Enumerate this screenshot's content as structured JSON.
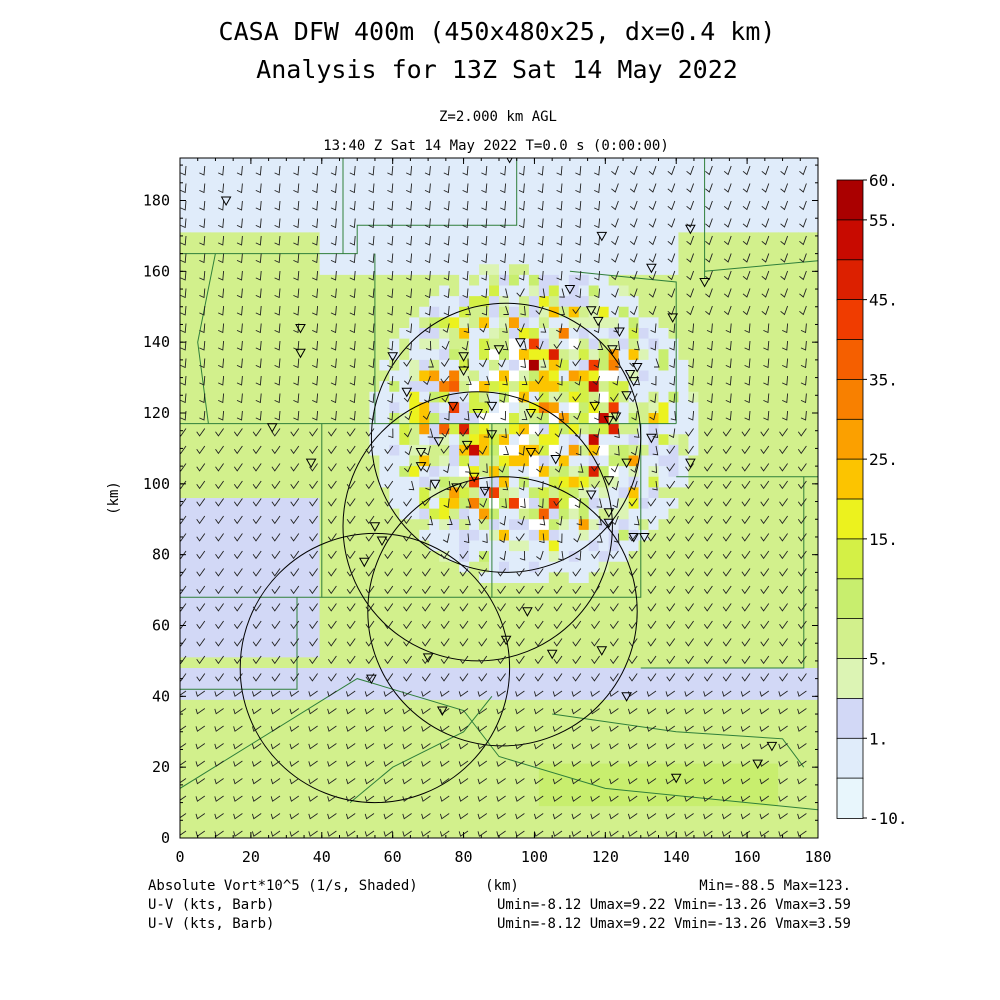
{
  "header": {
    "title_line1": "CASA DFW 400m (450x480x25, dx=0.4 km)",
    "title_line2": "Analysis for 13Z Sat 14 May 2022",
    "level": "Z=2.000 km AGL",
    "valid_time": "13:40 Z Sat 14 May 2022    T=0.0 s (0:00:00)"
  },
  "footer": {
    "field_label": "Absolute Vort*10^5 (1/s, Shaded)",
    "xlabel": "(km)",
    "minmax": "Min=-88.5 Max=123.",
    "wind1_label": "U-V (kts, Barb)",
    "wind1_stats": "Umin=-8.12 Umax=9.22 Vmin=-13.26 Vmax=3.59",
    "wind2_label": "U-V (kts, Barb)",
    "wind2_stats": "Umin=-8.12 Umax=9.22 Vmin=-13.26 Vmax=3.59"
  },
  "chart_data": {
    "type": "heatmap",
    "xlabel": "(km)",
    "ylabel": "(km)",
    "xlim": [
      0,
      180
    ],
    "ylim": [
      0,
      192
    ],
    "xticks": [
      0,
      20,
      40,
      60,
      80,
      100,
      120,
      140,
      160,
      180
    ],
    "yticks": [
      0,
      20,
      40,
      60,
      80,
      100,
      120,
      140,
      160,
      180
    ],
    "colorbar": {
      "labels": [
        "60.",
        "55.",
        "45.",
        "35.",
        "25.",
        "15.",
        "5.",
        "1.",
        "-10."
      ],
      "label_levels": [
        60,
        55,
        45,
        35,
        25,
        15,
        5,
        1,
        -10
      ],
      "bins": [
        {
          "lo": 55,
          "hi": 60,
          "color": "#aa0000"
        },
        {
          "lo": 50,
          "hi": 55,
          "color": "#c80a00"
        },
        {
          "lo": 45,
          "hi": 50,
          "color": "#dc2000"
        },
        {
          "lo": 40,
          "hi": 45,
          "color": "#f03c00"
        },
        {
          "lo": 35,
          "hi": 40,
          "color": "#f55f00"
        },
        {
          "lo": 30,
          "hi": 35,
          "color": "#f88000"
        },
        {
          "lo": 25,
          "hi": 30,
          "color": "#fba000"
        },
        {
          "lo": 20,
          "hi": 25,
          "color": "#fcc400"
        },
        {
          "lo": 15,
          "hi": 20,
          "color": "#ecf21e"
        },
        {
          "lo": 12,
          "hi": 15,
          "color": "#d4f046"
        },
        {
          "lo": 9,
          "hi": 12,
          "color": "#c8ee6e"
        },
        {
          "lo": 5,
          "hi": 9,
          "color": "#d2f08c"
        },
        {
          "lo": 3,
          "hi": 5,
          "color": "#dcf4b4"
        },
        {
          "lo": 1,
          "hi": 3,
          "color": "#d2d8f6"
        },
        {
          "lo": -5,
          "hi": 1,
          "color": "#e0ecfa"
        },
        {
          "lo": -10,
          "hi": -5,
          "color": "#e8f6fc"
        }
      ]
    },
    "radar_rings_km": [
      {
        "cx": 92,
        "cy": 113,
        "r": 38
      },
      {
        "cx": 84,
        "cy": 88,
        "r": 38
      },
      {
        "cx": 55,
        "cy": 48,
        "r": 38
      },
      {
        "cx": 91,
        "cy": 64,
        "r": 38
      }
    ],
    "stations_km": [
      [
        13,
        180
      ],
      [
        119,
        170
      ],
      [
        144,
        172
      ],
      [
        148,
        157
      ],
      [
        133,
        161
      ],
      [
        110,
        155
      ],
      [
        116,
        149
      ],
      [
        139,
        147
      ],
      [
        34,
        144
      ],
      [
        34,
        137
      ],
      [
        60,
        136
      ],
      [
        80,
        136
      ],
      [
        80,
        132
      ],
      [
        90,
        138
      ],
      [
        96,
        140
      ],
      [
        118,
        146
      ],
      [
        124,
        143
      ],
      [
        122,
        138
      ],
      [
        127,
        131
      ],
      [
        129,
        133
      ],
      [
        128,
        129
      ],
      [
        126,
        125
      ],
      [
        64,
        126
      ],
      [
        77,
        122
      ],
      [
        84,
        120
      ],
      [
        88,
        122
      ],
      [
        99,
        120
      ],
      [
        117,
        122
      ],
      [
        121,
        118
      ],
      [
        123,
        119
      ],
      [
        26,
        116
      ],
      [
        37,
        106
      ],
      [
        73,
        112
      ],
      [
        81,
        111
      ],
      [
        88,
        114
      ],
      [
        68,
        109
      ],
      [
        68,
        105
      ],
      [
        72,
        100
      ],
      [
        78,
        99
      ],
      [
        83,
        102
      ],
      [
        86,
        98
      ],
      [
        99,
        109
      ],
      [
        106,
        107
      ],
      [
        121,
        101
      ],
      [
        126,
        106
      ],
      [
        133,
        113
      ],
      [
        144,
        106
      ],
      [
        116,
        97
      ],
      [
        121,
        92
      ],
      [
        121,
        89
      ],
      [
        128,
        85
      ],
      [
        131,
        85
      ],
      [
        55,
        88
      ],
      [
        57,
        84
      ],
      [
        52,
        78
      ],
      [
        98,
        64
      ],
      [
        92,
        56
      ],
      [
        70,
        51
      ],
      [
        105,
        52
      ],
      [
        119,
        53
      ],
      [
        54,
        45
      ],
      [
        74,
        36
      ],
      [
        126,
        40
      ],
      [
        167,
        26
      ],
      [
        140,
        17
      ],
      [
        163,
        21
      ],
      [
        93,
        192
      ]
    ]
  },
  "colors": {
    "boundary": "#2f7f3a",
    "barb": "#202020",
    "ring": "#000000"
  }
}
